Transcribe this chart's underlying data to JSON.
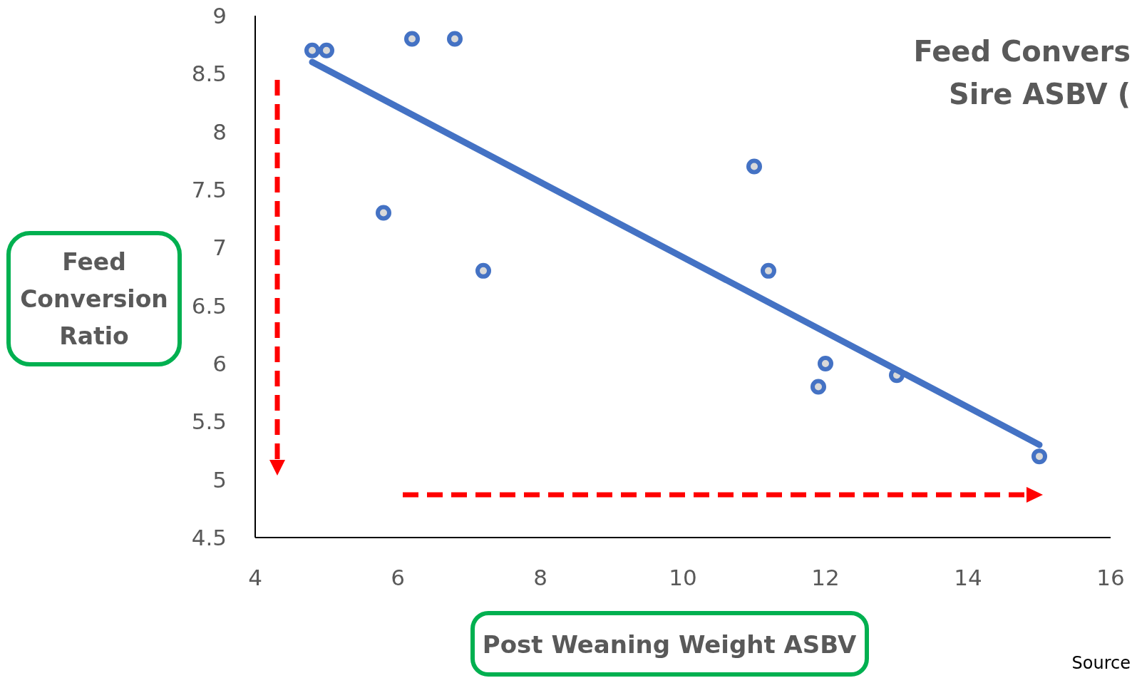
{
  "chart_data": {
    "type": "scatter",
    "title": "Feed Convers\nSire ASBV (",
    "xlabel": "Post Weaning Weight ASBV",
    "ylabel": "Feed\nConversion\nRatio",
    "annotations": [
      "Source"
    ],
    "xlim": [
      4,
      16
    ],
    "xticks": [
      4,
      6,
      8,
      10,
      12,
      14,
      16
    ],
    "ylim": [
      4.5,
      9
    ],
    "yticks": [
      4.5,
      5,
      5.5,
      6,
      6.5,
      7,
      7.5,
      8,
      8.5,
      9
    ],
    "grid": false,
    "series": [
      {
        "color": "#4472c4",
        "marker": "circle",
        "x": [
          4.8,
          5.0,
          6.2,
          6.8,
          5.8,
          7.2,
          11.0,
          11.2,
          12.0,
          11.9,
          13.0,
          15.0
        ],
        "values": [
          8.7,
          8.7,
          8.8,
          8.8,
          7.3,
          6.8,
          7.7,
          6.8,
          6.0,
          5.8,
          5.9,
          5.2
        ]
      },
      {
        "type": "line",
        "color": "#4472c4",
        "x": [
          4.8,
          15.0
        ],
        "values": [
          8.6,
          5.3
        ],
        "line_style": "solid"
      }
    ]
  }
}
